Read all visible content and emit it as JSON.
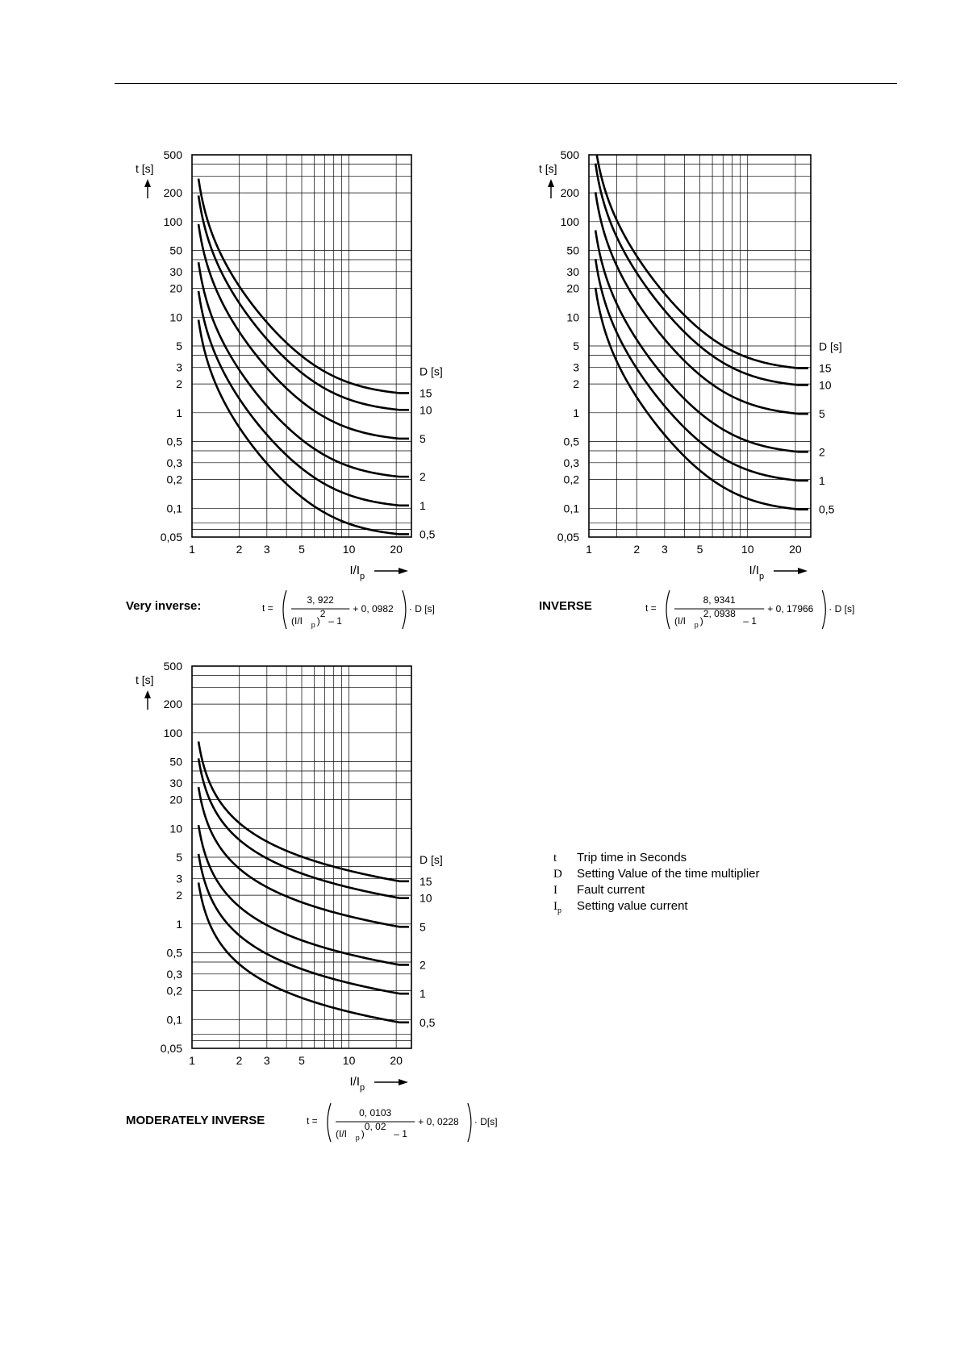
{
  "charts": {
    "very": {
      "name": "Very inverse:"
    },
    "inverse": {
      "name": "INVERSE"
    },
    "moderately": {
      "name": "MODERATELY INVERSE"
    }
  },
  "formulas": {
    "very": {
      "lhs": "t =",
      "numerator": "3, 922",
      "den_base": "(I/I",
      "den_sub": "p",
      "den_close": ")",
      "den_exp": "2",
      "den_tail": "– 1",
      "plus": "+ 0, 0982",
      "suffix": "· D  [s]"
    },
    "inverse": {
      "lhs": "t =",
      "numerator": "8, 9341",
      "den_base": "(I/I",
      "den_sub": "p",
      "den_close": ")",
      "den_exp": "2, 0938",
      "den_tail": "– 1",
      "plus": "+ 0, 17966",
      "suffix": "· D [s]"
    },
    "moderately": {
      "lhs": "t =",
      "numerator": "0, 0103",
      "den_base": "(I/I",
      "den_sub": "p",
      "den_close": ")",
      "den_exp": "0, 02",
      "den_tail": "– 1",
      "plus": "+ 0, 0228",
      "suffix": "· D[s]"
    }
  },
  "legend": [
    {
      "symbol": "t",
      "sub": "",
      "text": "Trip time in Seconds"
    },
    {
      "symbol": "D",
      "sub": "",
      "text": "Setting Value of the time multiplier"
    },
    {
      "symbol": "I",
      "sub": "",
      "text": "Fault current"
    },
    {
      "symbol": "I",
      "sub": "p",
      "text": "Setting value current"
    }
  ],
  "chart_data": [
    {
      "id": "very",
      "type": "line",
      "title": "Very inverse:",
      "ylabel": "t [s]",
      "xlabel": "I/I",
      "xlabel_sub": "p",
      "series_label_title": "D [s]",
      "x_scale": "log",
      "y_scale": "log",
      "xlim": [
        1,
        25
      ],
      "ylim": [
        0.05,
        500
      ],
      "x_ticks": [
        1,
        2,
        3,
        5,
        10,
        20
      ],
      "x_tick_labels": [
        "1",
        "2",
        "3",
        "5",
        "10",
        "20"
      ],
      "y_ticks": [
        500,
        200,
        100,
        50,
        30,
        20,
        10,
        5,
        3,
        2,
        1,
        0.5,
        0.3,
        0.2,
        0.1,
        0.05
      ],
      "y_tick_labels": [
        "500",
        "200",
        "100",
        "50",
        "30",
        "20",
        "10",
        "5",
        "3",
        "2",
        "1",
        "0,5",
        "0,3",
        "0,2",
        "0,1",
        "0,05"
      ],
      "x_minor_grid": [
        4,
        6,
        7,
        8,
        9
      ],
      "y_minor_grid": [
        400,
        300,
        40,
        4,
        0.4,
        0.07,
        0.06
      ],
      "series_end_x": 21,
      "formula": {
        "k": 3.922,
        "alpha": 2,
        "c": 0.0982,
        "x_start": 1.1
      },
      "series": [
        {
          "name": "15",
          "D": 15
        },
        {
          "name": "10",
          "D": 10
        },
        {
          "name": "5",
          "D": 5
        },
        {
          "name": "2",
          "D": 2
        },
        {
          "name": "1",
          "D": 1
        },
        {
          "name": "0,5",
          "D": 0.5
        }
      ]
    },
    {
      "id": "inverse",
      "type": "line",
      "title": "INVERSE",
      "ylabel": "t [s]",
      "xlabel": "I/I",
      "xlabel_sub": "p",
      "series_label_title": "D [s]",
      "x_scale": "log",
      "y_scale": "log",
      "xlim": [
        1,
        25
      ],
      "ylim": [
        0.05,
        500
      ],
      "x_ticks": [
        1,
        2,
        3,
        5,
        10,
        20
      ],
      "x_tick_labels": [
        "1",
        "2",
        "3",
        "5",
        "10",
        "20"
      ],
      "y_ticks": [
        500,
        200,
        100,
        50,
        30,
        20,
        10,
        5,
        3,
        2,
        1,
        0.5,
        0.3,
        0.2,
        0.1,
        0.05
      ],
      "y_tick_labels": [
        "500",
        "200",
        "100",
        "50",
        "30",
        "20",
        "10",
        "5",
        "3",
        "2",
        "1",
        "0,5",
        "0,3",
        "0,2",
        "0,1",
        "0,05"
      ],
      "x_minor_grid": [
        1.5,
        4,
        6,
        7,
        8,
        9
      ],
      "y_minor_grid": [
        400,
        300,
        40,
        4,
        0.4,
        0.07,
        0.06
      ],
      "series_end_x": 21,
      "formula": {
        "k": 8.9341,
        "alpha": 2.0938,
        "c": 0.17966,
        "x_start": 1.1
      },
      "series": [
        {
          "name": "15",
          "D": 15
        },
        {
          "name": "10",
          "D": 10
        },
        {
          "name": "5",
          "D": 5
        },
        {
          "name": "2",
          "D": 2
        },
        {
          "name": "1",
          "D": 1
        },
        {
          "name": "0,5",
          "D": 0.5
        }
      ]
    },
    {
      "id": "moderately",
      "type": "line",
      "title": "MODERATELY INVERSE",
      "ylabel": "t [s]",
      "xlabel": "I/I",
      "xlabel_sub": "p",
      "series_label_title": "D [s]",
      "x_scale": "log",
      "y_scale": "log",
      "xlim": [
        1,
        25
      ],
      "ylim": [
        0.05,
        500
      ],
      "x_ticks": [
        1,
        2,
        3,
        5,
        10,
        20
      ],
      "x_tick_labels": [
        "1",
        "2",
        "3",
        "5",
        "10",
        "20"
      ],
      "y_ticks": [
        500,
        200,
        100,
        50,
        30,
        20,
        10,
        5,
        3,
        2,
        1,
        0.5,
        0.3,
        0.2,
        0.1,
        0.05
      ],
      "y_tick_labels": [
        "500",
        "200",
        "100",
        "50",
        "30",
        "20",
        "10",
        "5",
        "3",
        "2",
        "1",
        "0,5",
        "0,3",
        "0,2",
        "0,1",
        "0,05"
      ],
      "x_minor_grid": [
        4,
        6,
        7,
        8,
        9
      ],
      "y_minor_grid": [
        400,
        300,
        40,
        4,
        0.4,
        0.07,
        0.06
      ],
      "series_end_x": 21,
      "formula": {
        "k": 0.0103,
        "alpha": 0.02,
        "c": 0.0228,
        "x_start": 1.1
      },
      "series": [
        {
          "name": "15",
          "D": 15
        },
        {
          "name": "10",
          "D": 10
        },
        {
          "name": "5",
          "D": 5
        },
        {
          "name": "2",
          "D": 2
        },
        {
          "name": "1",
          "D": 1
        },
        {
          "name": "0,5",
          "D": 0.5
        }
      ]
    }
  ]
}
